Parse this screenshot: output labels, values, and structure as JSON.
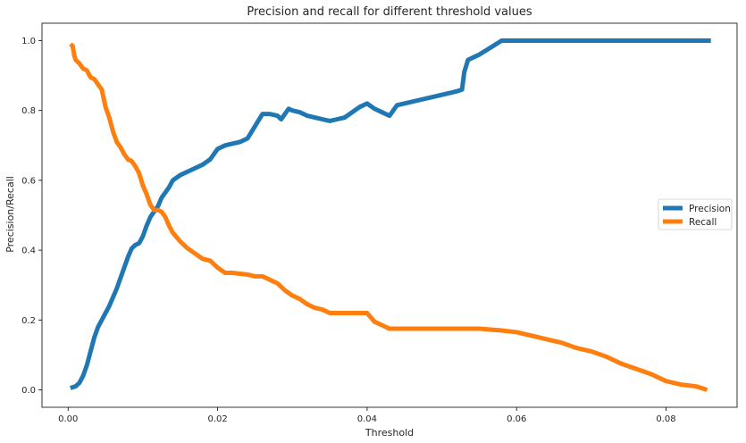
{
  "chart_data": {
    "type": "line",
    "title": "Precision and recall for different threshold values",
    "xlabel": "Threshold",
    "ylabel": "Precision/Recall",
    "xlim": [
      -0.0035,
      0.0895
    ],
    "ylim": [
      -0.05,
      1.05
    ],
    "xticks": [
      0.0,
      0.02,
      0.04,
      0.06,
      0.08
    ],
    "xtick_labels": [
      "0.00",
      "0.02",
      "0.04",
      "0.06",
      "0.08"
    ],
    "yticks": [
      0.0,
      0.2,
      0.4,
      0.6,
      0.8,
      1.0
    ],
    "ytick_labels": [
      "0.0",
      "0.2",
      "0.4",
      "0.6",
      "0.8",
      "1.0"
    ],
    "grid": false,
    "legend_position": "center-right",
    "series": [
      {
        "name": "Precision",
        "color": "#1f77b4",
        "points": [
          [
            0.0003,
            0.005
          ],
          [
            0.001,
            0.01
          ],
          [
            0.0015,
            0.02
          ],
          [
            0.002,
            0.04
          ],
          [
            0.0025,
            0.07
          ],
          [
            0.003,
            0.11
          ],
          [
            0.0035,
            0.15
          ],
          [
            0.004,
            0.18
          ],
          [
            0.0045,
            0.2
          ],
          [
            0.005,
            0.22
          ],
          [
            0.0055,
            0.24
          ],
          [
            0.006,
            0.265
          ],
          [
            0.0065,
            0.29
          ],
          [
            0.007,
            0.32
          ],
          [
            0.0075,
            0.35
          ],
          [
            0.008,
            0.38
          ],
          [
            0.0085,
            0.405
          ],
          [
            0.009,
            0.415
          ],
          [
            0.0095,
            0.42
          ],
          [
            0.01,
            0.44
          ],
          [
            0.0105,
            0.47
          ],
          [
            0.011,
            0.495
          ],
          [
            0.0115,
            0.51
          ],
          [
            0.012,
            0.525
          ],
          [
            0.0125,
            0.55
          ],
          [
            0.013,
            0.565
          ],
          [
            0.0135,
            0.58
          ],
          [
            0.014,
            0.6
          ],
          [
            0.015,
            0.615
          ],
          [
            0.016,
            0.625
          ],
          [
            0.017,
            0.635
          ],
          [
            0.018,
            0.645
          ],
          [
            0.019,
            0.66
          ],
          [
            0.02,
            0.69
          ],
          [
            0.021,
            0.7
          ],
          [
            0.022,
            0.705
          ],
          [
            0.023,
            0.71
          ],
          [
            0.024,
            0.72
          ],
          [
            0.025,
            0.755
          ],
          [
            0.026,
            0.79
          ],
          [
            0.027,
            0.79
          ],
          [
            0.028,
            0.785
          ],
          [
            0.0285,
            0.775
          ],
          [
            0.029,
            0.79
          ],
          [
            0.0295,
            0.805
          ],
          [
            0.03,
            0.8
          ],
          [
            0.031,
            0.795
          ],
          [
            0.032,
            0.785
          ],
          [
            0.033,
            0.78
          ],
          [
            0.034,
            0.775
          ],
          [
            0.035,
            0.77
          ],
          [
            0.036,
            0.775
          ],
          [
            0.037,
            0.78
          ],
          [
            0.038,
            0.795
          ],
          [
            0.039,
            0.81
          ],
          [
            0.04,
            0.82
          ],
          [
            0.041,
            0.805
          ],
          [
            0.042,
            0.795
          ],
          [
            0.043,
            0.785
          ],
          [
            0.044,
            0.815
          ],
          [
            0.046,
            0.825
          ],
          [
            0.048,
            0.835
          ],
          [
            0.05,
            0.845
          ],
          [
            0.052,
            0.855
          ],
          [
            0.0527,
            0.86
          ],
          [
            0.053,
            0.91
          ],
          [
            0.0535,
            0.945
          ],
          [
            0.055,
            0.96
          ],
          [
            0.0565,
            0.98
          ],
          [
            0.058,
            1.0
          ],
          [
            0.086,
            1.0
          ]
        ]
      },
      {
        "name": "Recall",
        "color": "#ff7f0e",
        "points": [
          [
            0.0003,
            0.99
          ],
          [
            0.0006,
            0.985
          ],
          [
            0.0008,
            0.96
          ],
          [
            0.001,
            0.945
          ],
          [
            0.0015,
            0.935
          ],
          [
            0.002,
            0.92
          ],
          [
            0.0025,
            0.915
          ],
          [
            0.003,
            0.895
          ],
          [
            0.0035,
            0.89
          ],
          [
            0.004,
            0.875
          ],
          [
            0.0045,
            0.86
          ],
          [
            0.005,
            0.81
          ],
          [
            0.0055,
            0.78
          ],
          [
            0.006,
            0.74
          ],
          [
            0.0065,
            0.71
          ],
          [
            0.007,
            0.695
          ],
          [
            0.0075,
            0.675
          ],
          [
            0.008,
            0.66
          ],
          [
            0.0085,
            0.655
          ],
          [
            0.009,
            0.64
          ],
          [
            0.0095,
            0.62
          ],
          [
            0.01,
            0.585
          ],
          [
            0.0105,
            0.56
          ],
          [
            0.011,
            0.53
          ],
          [
            0.0115,
            0.515
          ],
          [
            0.012,
            0.515
          ],
          [
            0.0125,
            0.51
          ],
          [
            0.013,
            0.495
          ],
          [
            0.0135,
            0.47
          ],
          [
            0.014,
            0.45
          ],
          [
            0.015,
            0.425
          ],
          [
            0.016,
            0.405
          ],
          [
            0.017,
            0.39
          ],
          [
            0.018,
            0.375
          ],
          [
            0.019,
            0.37
          ],
          [
            0.02,
            0.35
          ],
          [
            0.021,
            0.335
          ],
          [
            0.022,
            0.335
          ],
          [
            0.024,
            0.33
          ],
          [
            0.025,
            0.325
          ],
          [
            0.026,
            0.325
          ],
          [
            0.027,
            0.315
          ],
          [
            0.028,
            0.305
          ],
          [
            0.029,
            0.285
          ],
          [
            0.03,
            0.27
          ],
          [
            0.031,
            0.26
          ],
          [
            0.032,
            0.245
          ],
          [
            0.033,
            0.235
          ],
          [
            0.034,
            0.23
          ],
          [
            0.035,
            0.22
          ],
          [
            0.037,
            0.22
          ],
          [
            0.04,
            0.22
          ],
          [
            0.041,
            0.195
          ],
          [
            0.042,
            0.185
          ],
          [
            0.043,
            0.175
          ],
          [
            0.045,
            0.175
          ],
          [
            0.05,
            0.175
          ],
          [
            0.055,
            0.175
          ],
          [
            0.058,
            0.17
          ],
          [
            0.06,
            0.165
          ],
          [
            0.062,
            0.155
          ],
          [
            0.064,
            0.145
          ],
          [
            0.066,
            0.135
          ],
          [
            0.068,
            0.12
          ],
          [
            0.07,
            0.11
          ],
          [
            0.072,
            0.095
          ],
          [
            0.074,
            0.075
          ],
          [
            0.076,
            0.06
          ],
          [
            0.078,
            0.045
          ],
          [
            0.08,
            0.025
          ],
          [
            0.082,
            0.015
          ],
          [
            0.084,
            0.01
          ],
          [
            0.0855,
            0.0
          ]
        ]
      }
    ]
  }
}
